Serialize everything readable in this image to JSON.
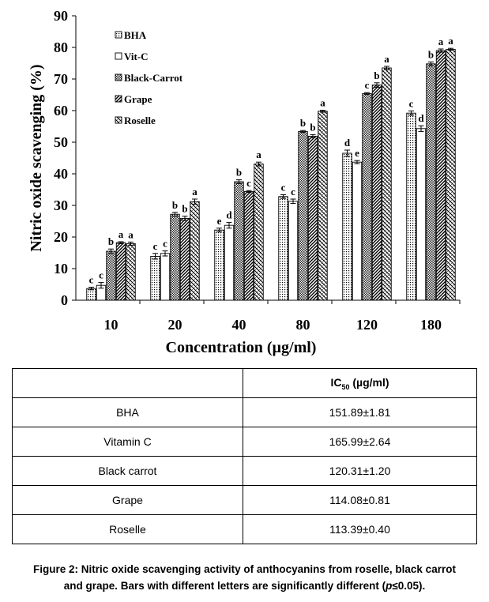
{
  "chart_data": {
    "type": "bar",
    "title": "",
    "xlabel": "Concentration (µg/ml)",
    "ylabel": "Nitric oxide scavenging (%)",
    "ylim": [
      0,
      90
    ],
    "yticks": [
      0,
      10,
      20,
      30,
      40,
      50,
      60,
      70,
      80,
      90
    ],
    "categories": [
      "10",
      "20",
      "40",
      "80",
      "120",
      "180"
    ],
    "legend_placement": "top-left",
    "series": [
      {
        "name": "BHA",
        "pattern": "dots",
        "values": [
          3.7,
          13.9,
          22.2,
          32.8,
          46.5,
          59.2
        ],
        "errors": [
          0.4,
          0.9,
          0.6,
          0.6,
          1.0,
          0.7
        ],
        "letters": [
          "c",
          "c",
          "e",
          "c",
          "d",
          "c"
        ]
      },
      {
        "name": "Vit-C",
        "pattern": "white",
        "values": [
          4.7,
          14.8,
          23.7,
          31.3,
          43.7,
          54.3
        ],
        "errors": [
          0.9,
          0.8,
          0.9,
          0.7,
          0.5,
          0.9
        ],
        "letters": [
          "c",
          "c",
          "d",
          "c",
          "e",
          "d"
        ]
      },
      {
        "name": "Black-Carrot",
        "pattern": "checker",
        "values": [
          15.5,
          27.2,
          37.5,
          53.4,
          65.4,
          74.8
        ],
        "errors": [
          0.7,
          0.6,
          0.6,
          0.3,
          0.3,
          0.6
        ],
        "letters": [
          "b",
          "b",
          "b",
          "b",
          "c",
          "b"
        ]
      },
      {
        "name": "Grape",
        "pattern": "diagonal",
        "values": [
          18.2,
          25.9,
          34.4,
          51.9,
          68.1,
          79.0
        ],
        "errors": [
          0.3,
          0.7,
          0.3,
          0.5,
          0.7,
          0.5
        ],
        "letters": [
          "a",
          "b",
          "c",
          "b",
          "b",
          "a"
        ]
      },
      {
        "name": "Roselle",
        "pattern": "zigzag",
        "values": [
          17.9,
          31.2,
          43.1,
          59.8,
          73.5,
          79.4
        ],
        "errors": [
          0.5,
          0.8,
          0.6,
          0.3,
          0.5,
          0.3
        ],
        "letters": [
          "a",
          "a",
          "a",
          "a",
          "a",
          "a"
        ]
      }
    ]
  },
  "table": {
    "header": [
      "",
      "IC50 (µg/ml)"
    ],
    "header_main": "IC",
    "header_sub": "50",
    "header_unit": "(µg/ml)",
    "rows": [
      {
        "name": "BHA",
        "value": "151.89±1.81"
      },
      {
        "name": "Vitamin C",
        "value": "165.99±2.64"
      },
      {
        "name": "Black carrot",
        "value": "120.31±1.20"
      },
      {
        "name": "Grape",
        "value": "114.08±0.81"
      },
      {
        "name": "Roselle",
        "value": "113.39±0.40"
      }
    ]
  },
  "caption": {
    "line1": "Figure 2: Nitric oxide scavenging activity of anthocyanins from roselle, black carrot",
    "line2_a": "and grape. Bars with different letters are significantly different (",
    "line2_p": "p",
    "line2_b": "≤0.05)."
  }
}
